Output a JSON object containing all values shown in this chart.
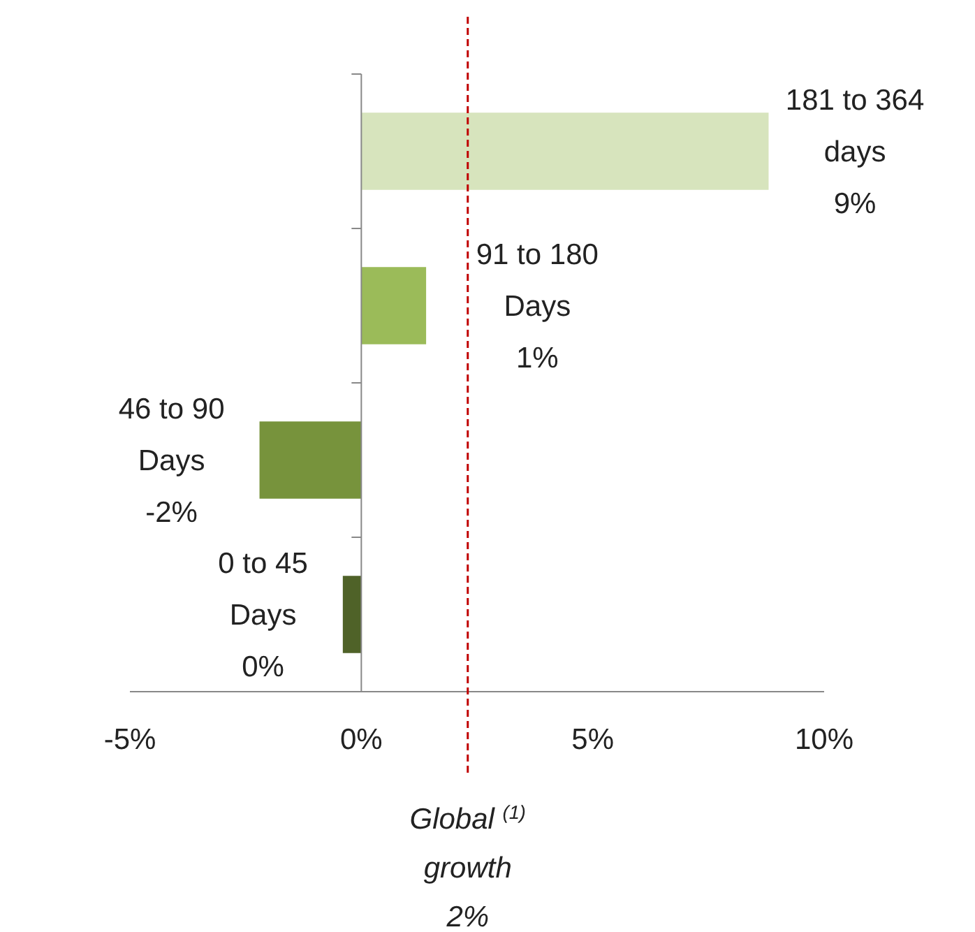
{
  "chart_data": {
    "type": "bar",
    "orientation": "horizontal",
    "categories": [
      "181 to 364 days",
      "91 to 180 Days",
      "46 to 90 Days",
      "0 to 45 Days"
    ],
    "values": [
      8.8,
      1.4,
      -2.2,
      -0.4
    ],
    "value_labels": [
      "9%",
      "1%",
      "-2%",
      "0%"
    ],
    "colors": [
      "#d7e4bd",
      "#9bbb59",
      "#77933c",
      "#4f6228"
    ],
    "xlim": [
      -5,
      10
    ],
    "xticks": [
      {
        "value": -5,
        "label": "-5%"
      },
      {
        "value": 0,
        "label": "0%"
      },
      {
        "value": 5,
        "label": "5%"
      },
      {
        "value": 10,
        "label": "10%"
      }
    ],
    "ref_lines": [
      {
        "axis": "x",
        "value": 2.3,
        "label": "Global $^{(1)}$ growth 2%",
        "color": "#c00000",
        "line_style": "dashed"
      }
    ],
    "tick_labels": "x"
  }
}
